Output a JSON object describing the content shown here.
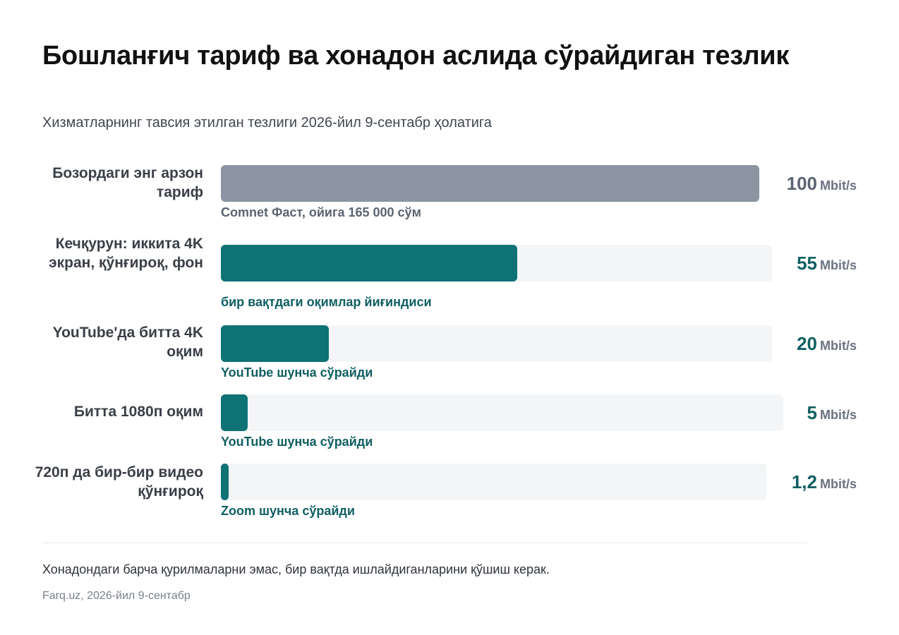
{
  "title": "Бошланғич тариф ва хонадон аслида сўрайдиган тезлик",
  "subtitle": "Хизматларнинг тавсия этилган тезлиги 2026-йил 9-сентабр ҳолатига",
  "footnote": "Хонадондаги барча қурилмаларни эмас, бир вақтда ишлайдиганларини қўшиш керак.",
  "source": "Farq.uz, 2026-йил 9-сентабр",
  "colors": {
    "baseline_bar": "#8a95a1",
    "need_bar": "#0f7275",
    "track": "#f3f5f7",
    "baseline_text": "#5b6470",
    "need_text": "#0f5f62"
  },
  "chart_data": {
    "type": "bar",
    "orientation": "horizontal",
    "title": "Бошланғич тариф ва хонадон аслида сўрайдиган тезлик",
    "subtitle": "Хизматларнинг тавсия этилган тезлиги 2026-йил 9-сентабр ҳолатига",
    "unit": "Mbit/s",
    "xlim": [
      0,
      100
    ],
    "grid": false,
    "rows": [
      {
        "label": "Бозордаги энг арзон тариф",
        "value": 100,
        "value_label": "100",
        "note": "Comnet Фаст, ойига 165 000 сўм",
        "kind": "baseline"
      },
      {
        "label": "Кечқурун: иккита 4K экран, қўнғироқ, фон",
        "value": 55,
        "value_label": "55",
        "note": "бир вақтдаги оқимлар йиғиндиси",
        "kind": "need"
      },
      {
        "label": "YouTube'да битта 4K оқим",
        "value": 20,
        "value_label": "20",
        "note": "YouTube шунча сўрайди",
        "kind": "need"
      },
      {
        "label": "Битта 1080п оқим",
        "value": 5,
        "value_label": "5",
        "note": "YouTube шунча сўрайди",
        "kind": "need"
      },
      {
        "label": "720п да бир-бир видео қўнғироқ",
        "value": 1.2,
        "value_label": "1,2",
        "note": "Zoom шунча сўрайди",
        "kind": "need"
      }
    ]
  }
}
